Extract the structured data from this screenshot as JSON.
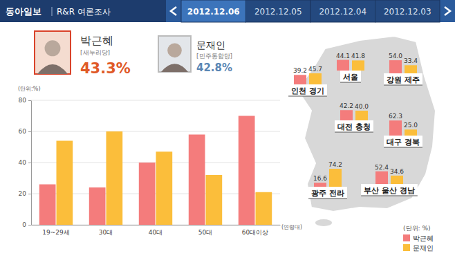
{
  "header": {
    "brand": "동아일보",
    "survey": "R&R 여론조사"
  },
  "tabs": [
    {
      "label": "2012.12.06",
      "active": true
    },
    {
      "label": "2012.12.05",
      "active": false
    },
    {
      "label": "2012.12.04",
      "active": false
    },
    {
      "label": "2012.12.03",
      "active": false
    }
  ],
  "candidates": [
    {
      "name": "박근혜",
      "party": "[새누리당]",
      "share": "43.3%"
    },
    {
      "name": "문재인",
      "party": "[민주통합당]",
      "share": "42.8%"
    }
  ],
  "chart_data": {
    "type": "bar",
    "y_label": "(단위:%)",
    "x_label": "(연령대)",
    "categories": [
      "19~29세",
      "30대",
      "40대",
      "50대",
      "60대이상"
    ],
    "series": [
      {
        "name": "박근혜",
        "color": "#f47c7c",
        "values": [
          26,
          24,
          40,
          58,
          70
        ]
      },
      {
        "name": "문재인",
        "color": "#fbbe3b",
        "values": [
          54,
          60,
          47,
          32,
          21
        ]
      }
    ],
    "ylim": [
      0,
      80
    ],
    "yticks": [
      0,
      20,
      40,
      60,
      80
    ],
    "grid": true,
    "legend": "lower right"
  },
  "map": {
    "type": "bar",
    "unit": "(단위: %)",
    "ylim": [
      0,
      80
    ],
    "data_labels": true,
    "regions": [
      {
        "name": "인천 경기",
        "values": [
          39.2,
          45.7
        ],
        "value_labels": [
          "39.2",
          "45.7"
        ]
      },
      {
        "name": "서울",
        "values": [
          44.1,
          41.8
        ],
        "value_labels": [
          "44.1",
          "41.8"
        ]
      },
      {
        "name": "강원 제주",
        "values": [
          54.0,
          33.4
        ],
        "value_labels": [
          "54.0",
          "33.4"
        ]
      },
      {
        "name": "대전 충청",
        "values": [
          42.2,
          40.0
        ],
        "value_labels": [
          "42.2",
          "40.0"
        ]
      },
      {
        "name": "대구 경북",
        "values": [
          62.3,
          25.0
        ],
        "value_labels": [
          "62.3",
          "25.0"
        ]
      },
      {
        "name": "광주 전라",
        "values": [
          16.6,
          74.2
        ],
        "value_labels": [
          "16.6",
          "74.2"
        ]
      },
      {
        "name": "부산 울산 경남",
        "values": [
          52.4,
          34.6
        ],
        "value_labels": [
          "52.4",
          "34.6"
        ]
      }
    ]
  }
}
